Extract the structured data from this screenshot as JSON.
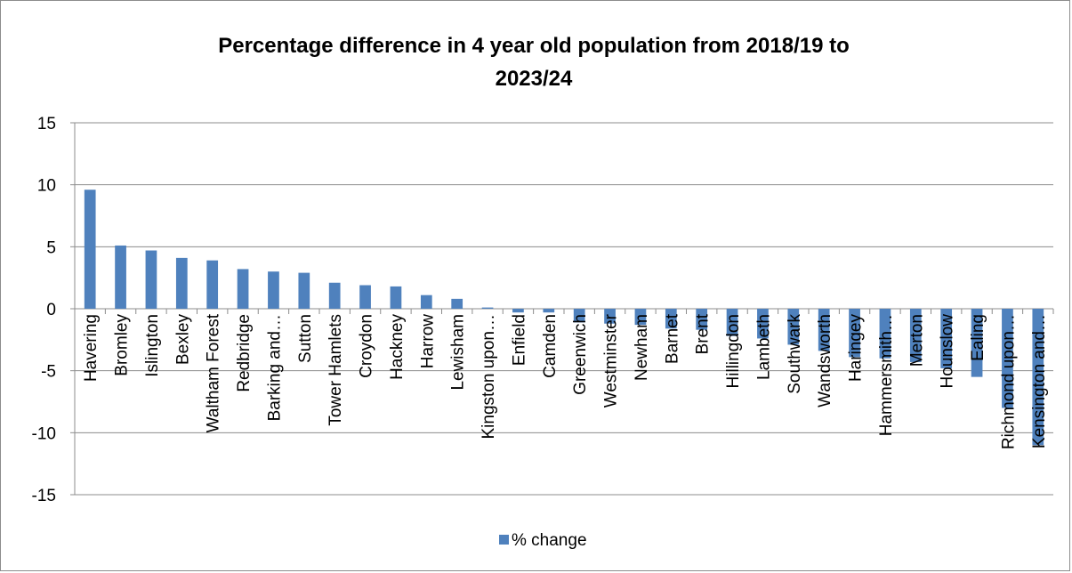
{
  "chart_data": {
    "type": "bar",
    "title": "Percentage difference in 4 year old population from 2018/19 to 2023/24",
    "title_lines": [
      "Percentage difference in 4 year old population from 2018/19 to",
      "2023/24"
    ],
    "xlabel": "",
    "ylabel": "",
    "ylim": [
      -15,
      15
    ],
    "yticks": [
      15,
      10,
      5,
      0,
      -5,
      -10,
      -15
    ],
    "grid": true,
    "legend_position": "bottom",
    "bar_color": "#4f81bd",
    "categories": [
      "Havering",
      "Bromley",
      "Islington",
      "Bexley",
      "Waltham Forest",
      "Redbridge",
      "Barking and…",
      "Sutton",
      "Tower Hamlets",
      "Croydon",
      "Hackney",
      "Harrow",
      "Lewisham",
      "Kingston upon…",
      "Enfield",
      "Camden",
      "Greenwich",
      "Westminster",
      "Newham",
      "Barnet",
      "Brent",
      "Hillingdon",
      "Lambeth",
      "Southwark",
      "Wandsworth",
      "Haringey",
      "Hammersmith…",
      "Merton",
      "Hounslow",
      "Ealing",
      "Richmond upon…",
      "Kensington and…"
    ],
    "series": [
      {
        "name": "% change",
        "values": [
          9.6,
          5.1,
          4.7,
          4.1,
          3.9,
          3.2,
          3.0,
          2.9,
          2.1,
          1.9,
          1.8,
          1.1,
          0.8,
          0.1,
          -0.3,
          -0.3,
          -1.1,
          -1.2,
          -1.3,
          -1.6,
          -1.7,
          -2.2,
          -2.4,
          -2.9,
          -3.4,
          -3.9,
          -4.0,
          -4.3,
          -4.8,
          -5.5,
          -8.0,
          -11.0
        ]
      }
    ]
  }
}
